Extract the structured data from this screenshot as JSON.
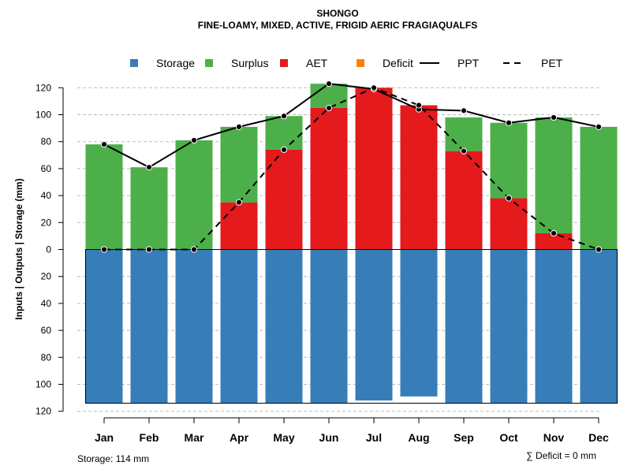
{
  "chart_data": {
    "type": "bar",
    "title": "SHONGO",
    "subtitle": "FINE-LOAMY, MIXED, ACTIVE, FRIGID AERIC FRAGIAQUALFS",
    "ylabel": "Inputs | Outputs | Storage    (mm)",
    "categories": [
      "Jan",
      "Feb",
      "Mar",
      "Apr",
      "May",
      "Jun",
      "Jul",
      "Aug",
      "Sep",
      "Oct",
      "Nov",
      "Dec"
    ],
    "ylim": [
      -120,
      130
    ],
    "yticks": [
      120,
      100,
      80,
      60,
      40,
      20,
      0,
      -20,
      -40,
      -60,
      -80,
      -100,
      -120
    ],
    "ytick_labels": [
      "120",
      "100",
      "80",
      "60",
      "40",
      "20",
      "0",
      "20",
      "40",
      "60",
      "80",
      "100",
      "120"
    ],
    "grid": true,
    "legend": [
      {
        "label": "Storage",
        "type": "square",
        "color": "#377eb8"
      },
      {
        "label": "Surplus",
        "type": "square",
        "color": "#4daf4a"
      },
      {
        "label": "AET",
        "type": "square",
        "color": "#e41a1c"
      },
      {
        "label": "Deficit",
        "type": "square",
        "color": "#ff7f00"
      },
      {
        "label": "PPT",
        "type": "solid-line",
        "color": "#000000"
      },
      {
        "label": "PET",
        "type": "dashed-line",
        "color": "#000000"
      }
    ],
    "colors": {
      "storage": "#377eb8",
      "surplus": "#4daf4a",
      "aet": "#e41a1c",
      "deficit": "#ff7f00",
      "grid": "#bbbbbb"
    },
    "series": [
      {
        "name": "Storage",
        "values": [
          -114,
          -114,
          -114,
          -114,
          -114,
          -114,
          -112,
          -109,
          -114,
          -114,
          -114,
          -114
        ]
      },
      {
        "name": "AET",
        "values": [
          0,
          0,
          0,
          35,
          74,
          105,
          120,
          107,
          73,
          38,
          12,
          0
        ]
      },
      {
        "name": "Surplus",
        "values": [
          78,
          61,
          81,
          56,
          25,
          18,
          0,
          0,
          25,
          56,
          86,
          91
        ]
      },
      {
        "name": "Deficit",
        "values": [
          0,
          0,
          0,
          0,
          0,
          0,
          0,
          0,
          0,
          0,
          0,
          0
        ]
      },
      {
        "name": "PPT",
        "values": [
          78,
          61,
          81,
          91,
          99,
          123,
          119,
          104,
          103,
          94,
          98,
          91
        ]
      },
      {
        "name": "PET",
        "values": [
          0,
          0,
          0,
          35,
          74,
          105,
          120,
          107,
          73,
          38,
          12,
          0
        ]
      }
    ],
    "storage_capacity": 114,
    "footnote_left": "Storage: 114 mm",
    "footnote_right": "∑ Deficit = 0 mm"
  }
}
